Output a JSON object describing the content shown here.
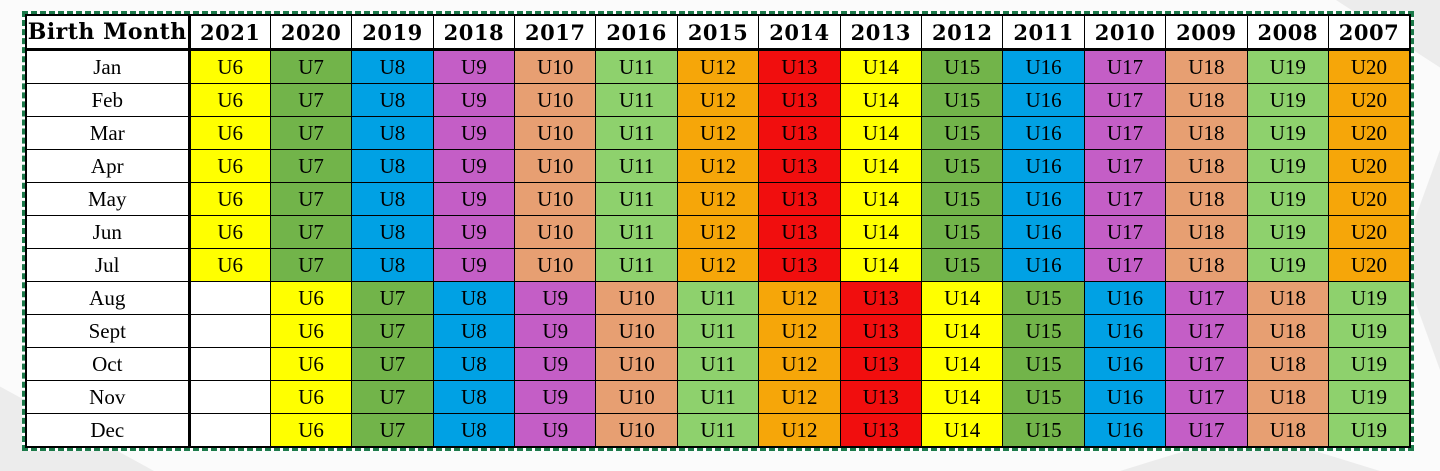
{
  "chart_data": {
    "type": "table",
    "columns": [
      "Birth Month",
      "2021",
      "2020",
      "2019",
      "2018",
      "2017",
      "2016",
      "2015",
      "2014",
      "2013",
      "2012",
      "2011",
      "2010",
      "2009",
      "2008",
      "2007"
    ],
    "rows": [
      [
        "Jan",
        "U6",
        "U7",
        "U8",
        "U9",
        "U10",
        "U11",
        "U12",
        "U13",
        "U14",
        "U15",
        "U16",
        "U17",
        "U18",
        "U19",
        "U20"
      ],
      [
        "Feb",
        "U6",
        "U7",
        "U8",
        "U9",
        "U10",
        "U11",
        "U12",
        "U13",
        "U14",
        "U15",
        "U16",
        "U17",
        "U18",
        "U19",
        "U20"
      ],
      [
        "Mar",
        "U6",
        "U7",
        "U8",
        "U9",
        "U10",
        "U11",
        "U12",
        "U13",
        "U14",
        "U15",
        "U16",
        "U17",
        "U18",
        "U19",
        "U20"
      ],
      [
        "Apr",
        "U6",
        "U7",
        "U8",
        "U9",
        "U10",
        "U11",
        "U12",
        "U13",
        "U14",
        "U15",
        "U16",
        "U17",
        "U18",
        "U19",
        "U20"
      ],
      [
        "May",
        "U6",
        "U7",
        "U8",
        "U9",
        "U10",
        "U11",
        "U12",
        "U13",
        "U14",
        "U15",
        "U16",
        "U17",
        "U18",
        "U19",
        "U20"
      ],
      [
        "Jun",
        "U6",
        "U7",
        "U8",
        "U9",
        "U10",
        "U11",
        "U12",
        "U13",
        "U14",
        "U15",
        "U16",
        "U17",
        "U18",
        "U19",
        "U20"
      ],
      [
        "Jul",
        "U6",
        "U7",
        "U8",
        "U9",
        "U10",
        "U11",
        "U12",
        "U13",
        "U14",
        "U15",
        "U16",
        "U17",
        "U18",
        "U19",
        "U20"
      ],
      [
        "Aug",
        "",
        "U6",
        "U7",
        "U8",
        "U9",
        "U10",
        "U11",
        "U12",
        "U13",
        "U14",
        "U15",
        "U16",
        "U17",
        "U18",
        "U19"
      ],
      [
        "Sept",
        "",
        "U6",
        "U7",
        "U8",
        "U9",
        "U10",
        "U11",
        "U12",
        "U13",
        "U14",
        "U15",
        "U16",
        "U17",
        "U18",
        "U19"
      ],
      [
        "Oct",
        "",
        "U6",
        "U7",
        "U8",
        "U9",
        "U10",
        "U11",
        "U12",
        "U13",
        "U14",
        "U15",
        "U16",
        "U17",
        "U18",
        "U19"
      ],
      [
        "Nov",
        "",
        "U6",
        "U7",
        "U8",
        "U9",
        "U10",
        "U11",
        "U12",
        "U13",
        "U14",
        "U15",
        "U16",
        "U17",
        "U18",
        "U19"
      ],
      [
        "Dec",
        "",
        "U6",
        "U7",
        "U8",
        "U9",
        "U10",
        "U11",
        "U12",
        "U13",
        "U14",
        "U15",
        "U16",
        "U17",
        "U18",
        "U19"
      ]
    ],
    "cell_colors": {
      "U6": "#ffff00",
      "U7": "#72b44a",
      "U8": "#00a1e4",
      "U9": "#c45ec6",
      "U10": "#e79f72",
      "U11": "#8ed16d",
      "U12": "#f6a609",
      "U13": "#f10e0e",
      "U14": "#ffff00",
      "U15": "#72b44a",
      "U16": "#00a1e4",
      "U17": "#c45ec6",
      "U18": "#e79f72",
      "U19": "#8ed16d",
      "U20": "#f6a609"
    },
    "border_color": "#1c7a4a"
  }
}
